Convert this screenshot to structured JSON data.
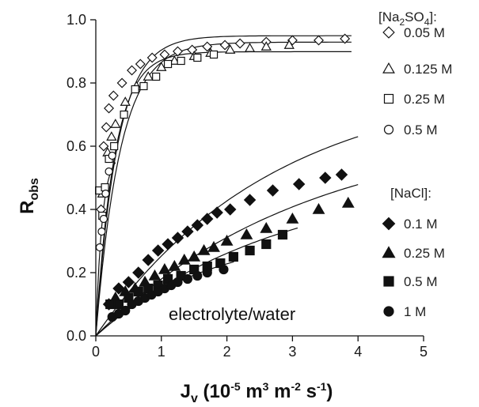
{
  "chart_data": {
    "type": "scatter",
    "title": "",
    "xlabel": "J_v (10^-5 m^3 m^-2 s^-1)",
    "ylabel": "R_obs",
    "xlim": [
      0,
      5
    ],
    "ylim": [
      0,
      1.0
    ],
    "x_ticks": [
      "0",
      "1",
      "2",
      "3",
      "4",
      "5"
    ],
    "y_ticks": [
      "0.0",
      "0.2",
      "0.4",
      "0.6",
      "0.8",
      "1.0"
    ],
    "grid": false,
    "legend_position": "right",
    "annotation": "electrolyte/water",
    "legend_groups": [
      {
        "title": "[Na₂SO₄]:",
        "entries": [
          0,
          1,
          2,
          3
        ]
      },
      {
        "title": "[NaCl]:",
        "entries": [
          4,
          5,
          6,
          7
        ]
      }
    ],
    "series": [
      {
        "name": "0.05 M",
        "group": "Na2SO4",
        "marker": "diamond",
        "filled": false,
        "x": [
          0.08,
          0.12,
          0.16,
          0.2,
          0.27,
          0.4,
          0.55,
          0.68,
          0.86,
          1.05,
          1.25,
          1.47,
          1.7,
          1.97,
          2.2,
          2.6,
          3.0,
          3.4,
          3.8
        ],
        "y": [
          0.4,
          0.6,
          0.66,
          0.72,
          0.76,
          0.8,
          0.84,
          0.86,
          0.88,
          0.89,
          0.9,
          0.905,
          0.915,
          0.92,
          0.925,
          0.93,
          0.935,
          0.935,
          0.94
        ]
      },
      {
        "name": "0.125 M",
        "group": "Na2SO4",
        "marker": "triangle",
        "filled": false,
        "x": [
          0.1,
          0.18,
          0.24,
          0.3,
          0.45,
          0.62,
          0.8,
          1.0,
          1.2,
          1.5,
          1.75,
          2.05,
          2.35,
          2.6,
          2.95
        ],
        "y": [
          0.45,
          0.58,
          0.63,
          0.67,
          0.74,
          0.79,
          0.82,
          0.85,
          0.87,
          0.885,
          0.895,
          0.905,
          0.91,
          0.915,
          0.92
        ]
      },
      {
        "name": "0.25 M",
        "group": "Na2SO4",
        "marker": "square",
        "filled": false,
        "x": [
          0.05,
          0.1,
          0.14,
          0.2,
          0.28,
          0.43,
          0.6,
          0.73,
          0.92,
          1.1,
          1.3,
          1.55,
          1.8
        ],
        "y": [
          0.46,
          0.38,
          0.47,
          0.56,
          0.6,
          0.7,
          0.78,
          0.79,
          0.82,
          0.86,
          0.87,
          0.88,
          0.89
        ]
      },
      {
        "name": "0.5 M",
        "group": "Na2SO4",
        "marker": "circle",
        "filled": false,
        "x": [
          0.06,
          0.09,
          0.12,
          0.15,
          0.2,
          0.25
        ],
        "y": [
          0.28,
          0.33,
          0.37,
          0.45,
          0.52,
          0.57
        ]
      },
      {
        "name": "0.1 M",
        "group": "NaCl",
        "marker": "diamond",
        "filled": true,
        "x": [
          0.2,
          0.35,
          0.5,
          0.65,
          0.8,
          0.95,
          1.1,
          1.25,
          1.4,
          1.55,
          1.7,
          1.85,
          2.05,
          2.35,
          2.7,
          3.1,
          3.5,
          3.75
        ],
        "y": [
          0.1,
          0.15,
          0.17,
          0.2,
          0.24,
          0.27,
          0.29,
          0.31,
          0.33,
          0.35,
          0.37,
          0.39,
          0.4,
          0.43,
          0.46,
          0.48,
          0.5,
          0.51
        ]
      },
      {
        "name": "0.25 M",
        "group": "NaCl",
        "marker": "triangle",
        "filled": true,
        "x": [
          0.3,
          0.45,
          0.6,
          0.75,
          0.9,
          1.05,
          1.2,
          1.35,
          1.5,
          1.65,
          1.8,
          2.0,
          2.3,
          2.6,
          3.0,
          3.4,
          3.85
        ],
        "y": [
          0.12,
          0.14,
          0.15,
          0.17,
          0.19,
          0.21,
          0.22,
          0.24,
          0.25,
          0.27,
          0.28,
          0.3,
          0.32,
          0.34,
          0.37,
          0.4,
          0.42
        ]
      },
      {
        "name": "0.5 M",
        "group": "NaCl",
        "marker": "square",
        "filled": true,
        "x": [
          0.22,
          0.35,
          0.5,
          0.65,
          0.8,
          0.95,
          1.1,
          1.3,
          1.5,
          1.7,
          1.9,
          2.1,
          2.35,
          2.6,
          2.85
        ],
        "y": [
          0.1,
          0.1,
          0.12,
          0.14,
          0.15,
          0.16,
          0.18,
          0.19,
          0.21,
          0.22,
          0.23,
          0.25,
          0.27,
          0.29,
          0.32
        ]
      },
      {
        "name": "1 M",
        "group": "NaCl",
        "marker": "circle",
        "filled": true,
        "x": [
          0.25,
          0.35,
          0.45,
          0.55,
          0.65,
          0.75,
          0.85,
          0.95,
          1.05,
          1.15,
          1.25,
          1.4,
          1.55,
          1.7,
          1.95
        ],
        "y": [
          0.06,
          0.07,
          0.08,
          0.1,
          0.11,
          0.12,
          0.13,
          0.14,
          0.15,
          0.16,
          0.17,
          0.18,
          0.19,
          0.2,
          0.21
        ]
      }
    ]
  }
}
